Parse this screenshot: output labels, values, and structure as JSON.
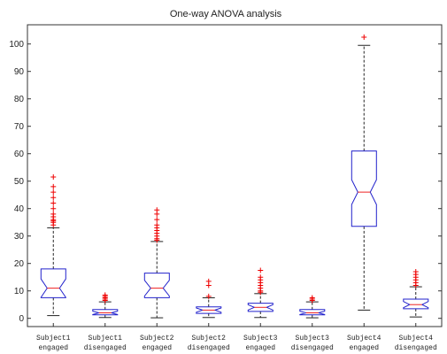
{
  "chart_data": {
    "type": "box",
    "title": "One-way ANOVA analysis",
    "xlabel": "",
    "ylabel": "",
    "ylim": [
      -3,
      107
    ],
    "yticks": [
      0,
      10,
      20,
      30,
      40,
      50,
      60,
      70,
      80,
      90,
      100
    ],
    "grid": false,
    "notched": true,
    "categories": [
      [
        "Subject1",
        "engaged"
      ],
      [
        "Subject1",
        "disengaged"
      ],
      [
        "Subject2",
        "engaged"
      ],
      [
        "Subject2",
        "disengaged"
      ],
      [
        "Subject3",
        "engaged"
      ],
      [
        "Subject3",
        "disengaged"
      ],
      [
        "Subject4",
        "engaged"
      ],
      [
        "Subject4",
        "disengaged"
      ]
    ],
    "boxes": [
      {
        "whisker_low": 1,
        "q1": 7.5,
        "median": 11,
        "q3": 18,
        "whisker_high": 33,
        "outliers": [
          34,
          35,
          35.5,
          36,
          37,
          38,
          40,
          42,
          44,
          46,
          48,
          51.5
        ]
      },
      {
        "whisker_low": 0.3,
        "q1": 1.3,
        "median": 2,
        "q3": 3.2,
        "whisker_high": 6,
        "outliers": [
          6.5,
          7,
          7.5,
          8,
          8.5
        ]
      },
      {
        "whisker_low": 0.2,
        "q1": 7.5,
        "median": 11,
        "q3": 16.5,
        "whisker_high": 28,
        "outliers": [
          28.5,
          29,
          30,
          31,
          32,
          33,
          34,
          36,
          38,
          39.5
        ]
      },
      {
        "whisker_low": 0.3,
        "q1": 1.8,
        "median": 3,
        "q3": 4.2,
        "whisker_high": 7.5,
        "outliers": [
          8,
          12,
          13.5
        ]
      },
      {
        "whisker_low": 0.3,
        "q1": 2.5,
        "median": 4,
        "q3": 5.5,
        "whisker_high": 9,
        "outliers": [
          9.5,
          10,
          11,
          12,
          13,
          14,
          15,
          17.5
        ]
      },
      {
        "whisker_low": 0.2,
        "q1": 1.3,
        "median": 2,
        "q3": 3.2,
        "whisker_high": 6,
        "outliers": [
          6.5,
          7,
          7.5
        ]
      },
      {
        "whisker_low": 3,
        "q1": 33.5,
        "median": 46,
        "q3": 61,
        "whisker_high": 99.5,
        "outliers": [
          102.5
        ]
      },
      {
        "whisker_low": 0.5,
        "q1": 3.5,
        "median": 5,
        "q3": 7,
        "whisker_high": 11.5,
        "outliers": [
          12,
          13,
          14,
          15,
          16,
          17
        ]
      }
    ],
    "colors": {
      "box": "#2222cc",
      "median": "#ee2222",
      "whisker": "#222222",
      "outlier": "#ee0000",
      "axes": "#333333"
    }
  }
}
